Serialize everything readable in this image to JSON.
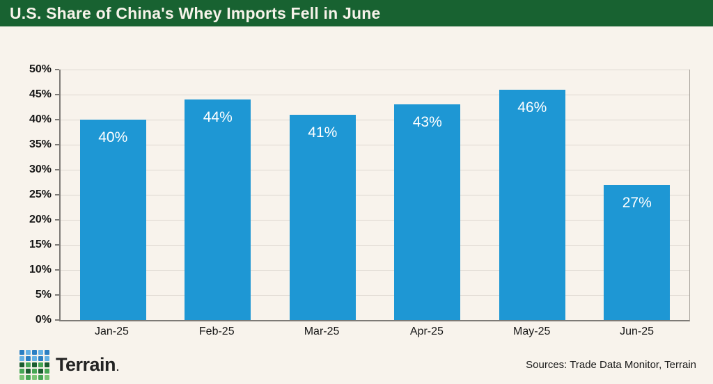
{
  "header": {
    "title": "U.S. Share of China's Whey Imports Fell in June",
    "bg_color": "#186231",
    "text_color": "#f7f3ea"
  },
  "chart_data": {
    "type": "bar",
    "title": "U.S. Share of China's Whey Imports Fell in June",
    "categories": [
      "Jan-25",
      "Feb-25",
      "Mar-25",
      "Apr-25",
      "May-25",
      "Jun-25"
    ],
    "values": [
      40,
      44,
      41,
      43,
      46,
      27
    ],
    "value_labels": [
      "40%",
      "44%",
      "41%",
      "43%",
      "46%",
      "27%"
    ],
    "xlabel": "",
    "ylabel": "",
    "ylim": [
      0,
      50
    ],
    "y_tick_step": 5,
    "y_ticks": [
      "0%",
      "5%",
      "10%",
      "15%",
      "20%",
      "25%",
      "30%",
      "35%",
      "40%",
      "45%",
      "50%"
    ],
    "grid": true,
    "legend": "none",
    "bar_color": "#1e97d4",
    "value_label_color": "#ffffff"
  },
  "footer": {
    "brand": "Terrain",
    "brand_suffix": ".",
    "sources": "Sources: Trade Data Monitor, Terrain",
    "logo_rows": [
      [
        "#2b7fc3",
        "#63b1e5",
        "#2b7fc3",
        "#63b1e5",
        "#2b7fc3"
      ],
      [
        "#63b1e5",
        "#2b7fc3",
        "#63b1e5",
        "#2b7fc3",
        "#63b1e5"
      ],
      [
        "#1a5d2f",
        "#46a755",
        "#1a5d2f",
        "#46a755",
        "#1a5d2f"
      ],
      [
        "#46a755",
        "#1a5d2f",
        "#46a755",
        "#1a5d2f",
        "#46a755"
      ],
      [
        "#7cc576",
        "#46a755",
        "#7cc576",
        "#46a755",
        "#7cc576"
      ]
    ]
  },
  "colors": {
    "background": "#f8f3ec",
    "gridline": "#ddd7d0",
    "axis": "#7d7a76"
  }
}
